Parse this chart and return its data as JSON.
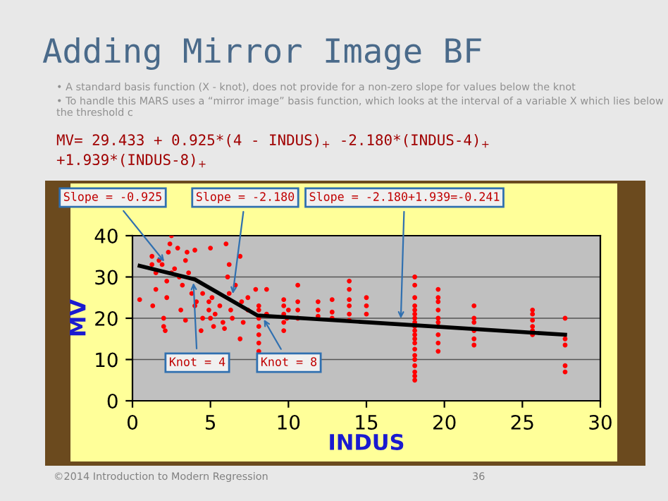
{
  "chart_data": {
    "type": "scatter",
    "title": "Adding Mirror Image BF",
    "xlabel": "INDUS",
    "ylabel": "MV",
    "xlim": [
      0,
      30
    ],
    "xticks": [
      0,
      5,
      10,
      15,
      20,
      25,
      30
    ],
    "ylim": [
      0,
      40
    ],
    "yticks": [
      0,
      10,
      20,
      30,
      40
    ],
    "grid": "y",
    "legend": false,
    "marker": "circle",
    "series": [
      {
        "color": "#ff0000",
        "x": [
          1.25,
          1.25,
          1.3,
          1.5,
          1.5,
          1.7,
          1.9,
          2.0,
          2.0,
          2.1,
          2.2,
          2.2,
          2.3,
          2.4,
          2.5,
          2.5,
          2.7,
          2.9,
          3.0,
          3.1,
          3.2,
          3.4,
          3.4,
          3.5,
          3.6,
          3.8,
          4.0,
          4.0,
          4.1,
          4.4,
          4.5,
          4.5,
          4.9,
          4.9,
          5.0,
          5.0,
          5.1,
          5.2,
          5.3,
          5.6,
          5.8,
          5.9,
          6.0,
          6.1,
          6.2,
          6.2,
          6.3,
          6.4,
          6.6,
          6.9,
          6.9,
          7.0,
          7.1,
          7.4,
          7.4,
          7.9,
          8.1,
          8.1,
          8.1,
          8.1,
          8.1,
          8.1,
          8.1,
          8.6,
          8.6,
          9.7,
          9.7,
          9.7,
          9.7,
          9.7,
          9.9,
          10.0,
          10.6,
          10.6,
          10.6,
          10.6,
          11.9,
          11.9,
          11.9,
          12.8,
          12.8,
          12.8,
          13.9,
          13.9,
          13.9,
          13.9,
          13.9,
          13.9,
          15.0,
          15.0,
          15.0,
          18.1,
          18.1,
          18.1,
          18.1,
          18.1,
          18.1,
          18.1,
          18.1,
          18.1,
          18.1,
          18.1,
          18.1,
          18.1,
          18.1,
          18.1,
          18.1,
          18.1,
          18.1,
          18.1,
          18.1,
          19.6,
          19.6,
          19.6,
          19.6,
          19.6,
          19.6,
          19.6,
          19.6,
          19.6,
          19.6,
          21.9,
          21.9,
          21.9,
          21.9,
          21.9,
          21.9,
          25.65,
          25.65,
          25.65,
          25.65,
          25.65,
          25.65,
          27.74,
          27.74,
          27.74,
          27.74,
          27.74,
          0.46
        ],
        "values": [
          33,
          35,
          23,
          27,
          31,
          34,
          33,
          20,
          18,
          17,
          25,
          29,
          36,
          38,
          40,
          31,
          32,
          37,
          30,
          22,
          28,
          19.5,
          34,
          36,
          31,
          26,
          23,
          36.5,
          24,
          17,
          20,
          26,
          22,
          24,
          37,
          20,
          25,
          18,
          21,
          23,
          19,
          17.5,
          38,
          30,
          33,
          26,
          22,
          20,
          28,
          35,
          15,
          24,
          19,
          22,
          25,
          27,
          12,
          14,
          16,
          18,
          20,
          22,
          23,
          21,
          27,
          17,
          19,
          21,
          23,
          24.5,
          20,
          22,
          20,
          22,
          24,
          28,
          20.5,
          22,
          24,
          20,
          21.5,
          24.5,
          19.5,
          21,
          23,
          24.5,
          27,
          29,
          21,
          23,
          25,
          5,
          6,
          7,
          8.5,
          10,
          11,
          12.5,
          14,
          15,
          16,
          17,
          18,
          19,
          20,
          21,
          22,
          23,
          25,
          28,
          30,
          12,
          14,
          16,
          18,
          19,
          20,
          22,
          24,
          25,
          27,
          13.5,
          15,
          17,
          19,
          20,
          23,
          16,
          17,
          18,
          19.5,
          21,
          22,
          7,
          8.5,
          13.5,
          15,
          20,
          24.5
        ]
      },
      {
        "type": "line",
        "color": "#000000",
        "marker": "none",
        "x": [
          0.46,
          4,
          8,
          27.74
        ],
        "values": [
          32.7,
          29.4,
          20.7,
          16.0
        ]
      }
    ],
    "annotations": [
      {
        "text": "Slope = -0.925",
        "x": 2.2,
        "y": 33
      },
      {
        "text": "Slope = -2.180",
        "x": 6.4,
        "y": 25
      },
      {
        "text": "Slope = -2.180+1.939=-0.241",
        "x": 17.2,
        "y": 19
      },
      {
        "text": "Knot = 4",
        "x": 3.9,
        "y": 29.5
      },
      {
        "text": "Knot = 8",
        "x": 8.3,
        "y": 20.5
      },
      "• A standard basis function (X - knot), does not provide for a non-zero slope for values below the knot",
      "• To handle this MARS uses a “mirror image” basis function, which looks at the interval of a variable X which lies below the threshold c",
      "MV= 29.433 + 0.925*(4 - INDUS)$_{+}$ -2.180*(INDUS-4)$_{+}$",
      "+1.939*(INDUS-8)$_{+}$",
      "©2014 Introduction to Modern Regression",
      "36"
    ]
  }
}
